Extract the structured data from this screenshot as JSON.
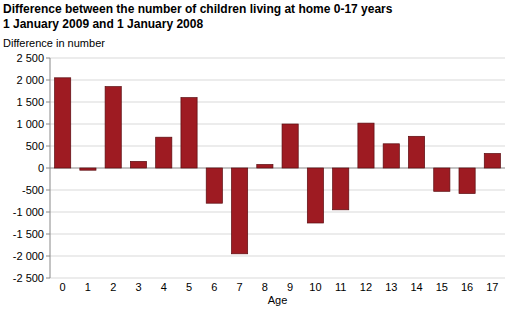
{
  "chart_data": {
    "type": "bar",
    "title": "Difference between the number of children living at home 0-17 years 1 January 2009 and 1 January 2008",
    "y_label": "Difference in number",
    "x_label": "Age",
    "categories": [
      "0",
      "1",
      "2",
      "3",
      "4",
      "5",
      "6",
      "7",
      "8",
      "9",
      "10",
      "11",
      "12",
      "13",
      "14",
      "15",
      "16",
      "17"
    ],
    "values": [
      2050,
      -50,
      1850,
      150,
      700,
      1600,
      -800,
      -1950,
      80,
      1000,
      -1250,
      -950,
      1020,
      550,
      720,
      -530,
      -580,
      330
    ],
    "color": "#9e1b22",
    "ylim": [
      -2500,
      2500
    ],
    "yticks": [
      {
        "value": -2500,
        "label": "-2 500"
      },
      {
        "value": -2000,
        "label": "-2 000"
      },
      {
        "value": -1500,
        "label": "-1 500"
      },
      {
        "value": -1000,
        "label": "-1 000"
      },
      -500,
      0,
      500,
      {
        "value": 1000,
        "label": "1 000"
      },
      {
        "value": 1500,
        "label": "1 500"
      },
      {
        "value": 2000,
        "label": "2 000"
      },
      {
        "value": 2500,
        "label": "2 500"
      }
    ],
    "grid": true
  }
}
